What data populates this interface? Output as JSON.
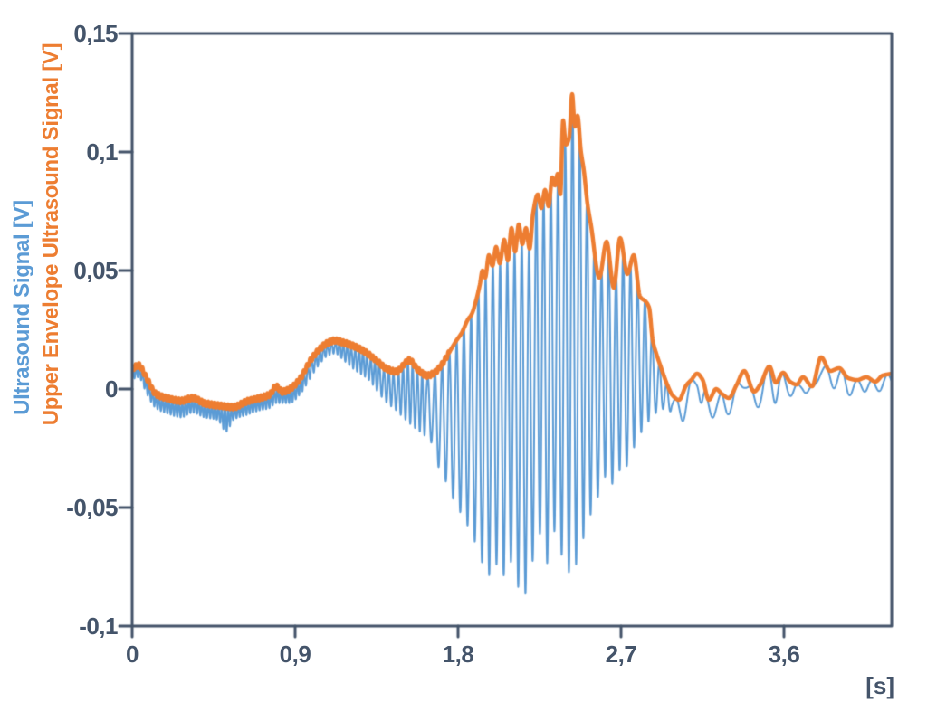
{
  "chart": {
    "y_label_signal": "Ultrasound Signal [V]",
    "y_label_envelope": "Upper Envelope Ultrasound Signal [V]",
    "x_unit": "[s]"
  },
  "chart_data": {
    "type": "line",
    "title": "",
    "xlabel": "[s]",
    "ylabel": "Ultrasound Signal [V] / Upper Envelope Ultrasound Signal [V]",
    "xlim": [
      0,
      4.195
    ],
    "ylim": [
      -0.1,
      0.15
    ],
    "grid": false,
    "legend_position": "left-axis-colored-labels",
    "x_ticks": [
      "0",
      "0,9",
      "1,8",
      "2,7",
      "3,6"
    ],
    "x_tick_values": [
      0,
      0.9,
      1.8,
      2.7,
      3.6
    ],
    "y_ticks": [
      "0,15",
      "0,1",
      "0,05",
      "0",
      "-0,05",
      "-0,1"
    ],
    "y_tick_values": [
      0.15,
      0.1,
      0.05,
      0,
      -0.05,
      -0.1
    ],
    "colors": {
      "signal": "#5B9BD5",
      "envelope": "#ED7D31",
      "axis": "#44546A",
      "background": "#ffffff"
    },
    "series": [
      {
        "name": "Upper Envelope Ultrasound Signal [V]",
        "role": "upper_envelope",
        "color": "#ED7D31",
        "points": [
          [
            0.0,
            0.0085
          ],
          [
            0.035,
            0.01
          ],
          [
            0.08,
            0.0046
          ],
          [
            0.13,
            -0.002
          ],
          [
            0.2,
            -0.004
          ],
          [
            0.27,
            -0.005
          ],
          [
            0.335,
            -0.0038
          ],
          [
            0.4,
            -0.006
          ],
          [
            0.48,
            -0.007
          ],
          [
            0.56,
            -0.0076
          ],
          [
            0.63,
            -0.0053
          ],
          [
            0.705,
            -0.0038
          ],
          [
            0.76,
            -0.0023
          ],
          [
            0.795,
            0.0011
          ],
          [
            0.83,
            -0.0011
          ],
          [
            0.87,
            0.0
          ],
          [
            0.93,
            0.0046
          ],
          [
            0.98,
            0.0115
          ],
          [
            1.03,
            0.0164
          ],
          [
            1.08,
            0.0195
          ],
          [
            1.12,
            0.0205
          ],
          [
            1.17,
            0.0195
          ],
          [
            1.23,
            0.0179
          ],
          [
            1.28,
            0.016
          ],
          [
            1.34,
            0.0126
          ],
          [
            1.41,
            0.0084
          ],
          [
            1.46,
            0.0073
          ],
          [
            1.505,
            0.0107
          ],
          [
            1.53,
            0.0122
          ],
          [
            1.58,
            0.008
          ],
          [
            1.63,
            0.0057
          ],
          [
            1.67,
            0.0069
          ],
          [
            1.71,
            0.0103
          ],
          [
            1.75,
            0.0153
          ],
          [
            1.785,
            0.0198
          ],
          [
            1.82,
            0.0237
          ],
          [
            1.855,
            0.0294
          ],
          [
            1.875,
            0.0315
          ],
          [
            1.9,
            0.0375
          ],
          [
            1.92,
            0.044
          ],
          [
            1.935,
            0.05
          ],
          [
            1.95,
            0.047
          ],
          [
            1.97,
            0.0565
          ],
          [
            1.99,
            0.052
          ],
          [
            2.01,
            0.06
          ],
          [
            2.03,
            0.053
          ],
          [
            2.055,
            0.063
          ],
          [
            2.075,
            0.0542
          ],
          [
            2.095,
            0.0679
          ],
          [
            2.115,
            0.058
          ],
          [
            2.135,
            0.0695
          ],
          [
            2.155,
            0.0611
          ],
          [
            2.175,
            0.0679
          ],
          [
            2.195,
            0.0592
          ],
          [
            2.215,
            0.0745
          ],
          [
            2.24,
            0.0821
          ],
          [
            2.26,
            0.0763
          ],
          [
            2.28,
            0.084
          ],
          [
            2.3,
            0.0771
          ],
          [
            2.32,
            0.0893
          ],
          [
            2.335,
            0.0859
          ],
          [
            2.35,
            0.0908
          ],
          [
            2.365,
            0.0821
          ],
          [
            2.38,
            0.1134
          ],
          [
            2.395,
            0.1031
          ],
          [
            2.413,
            0.1058
          ],
          [
            2.43,
            0.1244
          ],
          [
            2.445,
            0.1107
          ],
          [
            2.46,
            0.1153
          ],
          [
            2.478,
            0.1005
          ],
          [
            2.495,
            0.092
          ],
          [
            2.515,
            0.078
          ],
          [
            2.535,
            0.0687
          ],
          [
            2.58,
            0.047
          ],
          [
            2.62,
            0.0622
          ],
          [
            2.66,
            0.0427
          ],
          [
            2.695,
            0.0637
          ],
          [
            2.735,
            0.0485
          ],
          [
            2.77,
            0.0565
          ],
          [
            2.805,
            0.0389
          ],
          [
            2.835,
            0.037
          ],
          [
            2.855,
            0.0344
          ],
          [
            2.875,
            0.0205
          ],
          [
            2.895,
            0.0149
          ],
          [
            2.92,
            0.0093
          ],
          [
            2.955,
            0.0019
          ],
          [
            2.985,
            -0.0027
          ],
          [
            3.02,
            -0.0046
          ],
          [
            3.06,
            0.0015
          ],
          [
            3.09,
            0.004
          ],
          [
            3.12,
            0.0065
          ],
          [
            3.15,
            0.004
          ],
          [
            3.185,
            -0.0046
          ],
          [
            3.225,
            0.0
          ],
          [
            3.255,
            -0.0019
          ],
          [
            3.295,
            -0.0038
          ],
          [
            3.34,
            0.002
          ],
          [
            3.38,
            0.0076
          ],
          [
            3.435,
            -0.0011
          ],
          [
            3.47,
            0.002
          ],
          [
            3.52,
            0.0095
          ],
          [
            3.555,
            0.0027
          ],
          [
            3.595,
            0.0069
          ],
          [
            3.635,
            0.003
          ],
          [
            3.67,
            0.0019
          ],
          [
            3.705,
            0.005
          ],
          [
            3.755,
            0.0011
          ],
          [
            3.805,
            0.0134
          ],
          [
            3.855,
            0.0076
          ],
          [
            3.905,
            0.0088
          ],
          [
            3.955,
            0.0046
          ],
          [
            4.005,
            0.0038
          ],
          [
            4.055,
            0.005
          ],
          [
            4.105,
            0.0031
          ],
          [
            4.145,
            0.0057
          ],
          [
            4.195,
            0.0065
          ]
        ]
      },
      {
        "name": "Ultrasound Signal [V] (lower excursion envelope)",
        "role": "lower_envelope",
        "color": "#5B9BD5",
        "points": [
          [
            0.0,
            0.004
          ],
          [
            0.035,
            0.005
          ],
          [
            0.08,
            -0.002
          ],
          [
            0.13,
            -0.008
          ],
          [
            0.2,
            -0.0105
          ],
          [
            0.27,
            -0.012
          ],
          [
            0.335,
            -0.01
          ],
          [
            0.4,
            -0.012
          ],
          [
            0.47,
            -0.013
          ],
          [
            0.52,
            -0.018
          ],
          [
            0.56,
            -0.013
          ],
          [
            0.63,
            -0.011
          ],
          [
            0.705,
            -0.009
          ],
          [
            0.76,
            -0.008
          ],
          [
            0.795,
            -0.006
          ],
          [
            0.87,
            -0.006
          ],
          [
            0.93,
            -0.002
          ],
          [
            0.98,
            0.004
          ],
          [
            1.03,
            0.01
          ],
          [
            1.08,
            0.014
          ],
          [
            1.12,
            0.015
          ],
          [
            1.17,
            0.012
          ],
          [
            1.23,
            0.008
          ],
          [
            1.305,
            0.004
          ],
          [
            1.355,
            -0.001
          ],
          [
            1.405,
            -0.0057
          ],
          [
            1.455,
            -0.0088
          ],
          [
            1.505,
            -0.0126
          ],
          [
            1.555,
            -0.016
          ],
          [
            1.605,
            -0.019
          ],
          [
            1.655,
            -0.023
          ],
          [
            1.685,
            -0.0317
          ],
          [
            1.72,
            -0.037
          ],
          [
            1.755,
            -0.0431
          ],
          [
            1.785,
            -0.0485
          ],
          [
            1.82,
            -0.053
          ],
          [
            1.855,
            -0.058
          ],
          [
            1.89,
            -0.064
          ],
          [
            1.925,
            -0.071
          ],
          [
            1.96,
            -0.081
          ],
          [
            1.995,
            -0.072
          ],
          [
            2.03,
            -0.077
          ],
          [
            2.065,
            -0.079
          ],
          [
            2.1,
            -0.072
          ],
          [
            2.135,
            -0.084
          ],
          [
            2.185,
            -0.0866
          ],
          [
            2.22,
            -0.0687
          ],
          [
            2.255,
            -0.061
          ],
          [
            2.295,
            -0.0737
          ],
          [
            2.33,
            -0.06
          ],
          [
            2.365,
            -0.068
          ],
          [
            2.4,
            -0.077
          ],
          [
            2.435,
            -0.0775
          ],
          [
            2.47,
            -0.068
          ],
          [
            2.505,
            -0.06
          ],
          [
            2.545,
            -0.05
          ],
          [
            2.575,
            -0.045
          ],
          [
            2.61,
            -0.037
          ],
          [
            2.645,
            -0.0408
          ],
          [
            2.68,
            -0.033
          ],
          [
            2.71,
            -0.037
          ],
          [
            2.74,
            -0.0305
          ],
          [
            2.77,
            -0.025
          ],
          [
            2.8,
            -0.02
          ],
          [
            2.83,
            -0.016
          ],
          [
            2.86,
            -0.013
          ],
          [
            2.895,
            -0.01
          ],
          [
            2.925,
            -0.0084
          ],
          [
            2.955,
            -0.009
          ],
          [
            2.985,
            -0.01
          ],
          [
            3.03,
            -0.0153
          ],
          [
            3.06,
            -0.01
          ],
          [
            3.09,
            -0.005
          ],
          [
            3.12,
            0.0005
          ],
          [
            3.155,
            -0.0134
          ],
          [
            3.185,
            -0.016
          ],
          [
            3.225,
            -0.0103
          ],
          [
            3.255,
            -0.0134
          ],
          [
            3.295,
            -0.0107
          ],
          [
            3.34,
            -0.005
          ],
          [
            3.38,
            0.0005
          ],
          [
            3.435,
            -0.0107
          ],
          [
            3.47,
            -0.006
          ],
          [
            3.52,
            0.002
          ],
          [
            3.555,
            -0.0065
          ],
          [
            3.595,
            0.0
          ],
          [
            3.67,
            -0.0057
          ],
          [
            3.705,
            -0.001
          ],
          [
            3.755,
            -0.0057
          ],
          [
            3.805,
            0.006
          ],
          [
            3.855,
            -0.0011
          ],
          [
            3.905,
            0.002
          ],
          [
            3.955,
            -0.0027
          ],
          [
            4.005,
            -0.002
          ],
          [
            4.055,
            -0.0011
          ],
          [
            4.105,
            -0.0019
          ],
          [
            4.145,
            0.0
          ],
          [
            4.195,
            0.001
          ]
        ]
      }
    ],
    "carrier": {
      "description": "blue signal oscillates between lower and upper envelope",
      "segments": [
        {
          "until": 0.95,
          "hz": 55
        },
        {
          "until": 1.35,
          "hz": 46
        },
        {
          "until": 1.62,
          "hz": 38
        },
        {
          "until": 2.98,
          "hz": 25
        },
        {
          "until": 4.2,
          "hz": 12
        }
      ],
      "envelope_ripple": {
        "amplitude": 0.001,
        "hz": 55,
        "applies_until": 1.75
      }
    }
  }
}
